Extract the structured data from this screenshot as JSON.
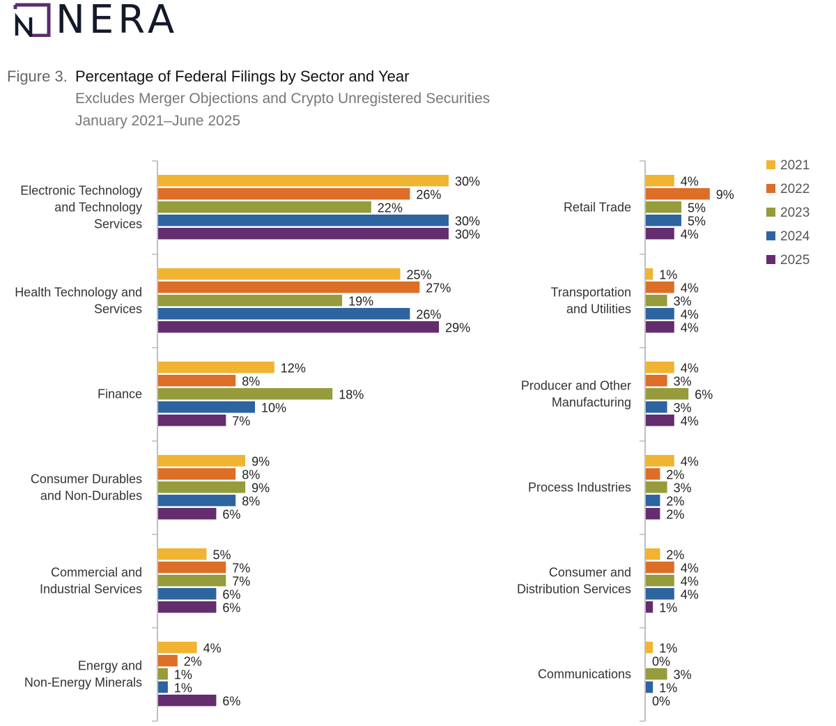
{
  "brand": {
    "name": "NERA",
    "mark_color": "#5a2d6e"
  },
  "figure": {
    "number": "Figure 3.",
    "title": "Percentage of Federal Filings by Sector and Year",
    "subtitle": "Excludes Merger Objections and Crypto Unregistered Securities",
    "period": "January 2021–June 2025"
  },
  "chart_data": {
    "type": "bar",
    "orientation": "horizontal",
    "title": "Percentage of Federal Filings by Sector and Year",
    "xlabel": "",
    "ylabel": "",
    "value_suffix": "%",
    "legend_position": "top-right",
    "grid": false,
    "series": [
      {
        "name": "2021",
        "color": "#f0b432"
      },
      {
        "name": "2022",
        "color": "#dc6e28"
      },
      {
        "name": "2023",
        "color": "#969b3c"
      },
      {
        "name": "2024",
        "color": "#2d64a0"
      },
      {
        "name": "2025",
        "color": "#642d6e"
      }
    ],
    "panels": [
      {
        "name": "left",
        "xlim": [
          0,
          30
        ],
        "categories": [
          {
            "label": [
              "Electronic Technology",
              "and Technology",
              "Services"
            ],
            "values": [
              30,
              26,
              22,
              30,
              30
            ]
          },
          {
            "label": [
              "Health Technology and",
              "Services"
            ],
            "values": [
              25,
              27,
              19,
              26,
              29
            ]
          },
          {
            "label": [
              "Finance"
            ],
            "values": [
              12,
              8,
              18,
              10,
              7
            ]
          },
          {
            "label": [
              "Consumer Durables",
              "and Non-Durables"
            ],
            "values": [
              9,
              8,
              9,
              8,
              6
            ]
          },
          {
            "label": [
              "Commercial and",
              "Industrial Services"
            ],
            "values": [
              5,
              7,
              7,
              6,
              6
            ]
          },
          {
            "label": [
              "Energy and",
              "Non-Energy Minerals"
            ],
            "values": [
              4,
              2,
              1,
              1,
              6
            ]
          }
        ]
      },
      {
        "name": "right",
        "xlim": [
          0,
          9
        ],
        "categories": [
          {
            "label": [
              "Retail Trade"
            ],
            "values": [
              4,
              9,
              5,
              5,
              4
            ]
          },
          {
            "label": [
              "Transportation",
              "and Utilities"
            ],
            "values": [
              1,
              4,
              3,
              4,
              4
            ]
          },
          {
            "label": [
              "Producer and Other",
              "Manufacturing"
            ],
            "values": [
              4,
              3,
              6,
              3,
              4
            ]
          },
          {
            "label": [
              "Process Industries"
            ],
            "values": [
              4,
              2,
              3,
              2,
              2
            ]
          },
          {
            "label": [
              "Consumer and",
              "Distribution Services"
            ],
            "values": [
              2,
              4,
              4,
              4,
              1
            ]
          },
          {
            "label": [
              "Communications"
            ],
            "values": [
              1,
              0,
              3,
              1,
              0
            ]
          }
        ]
      }
    ]
  }
}
